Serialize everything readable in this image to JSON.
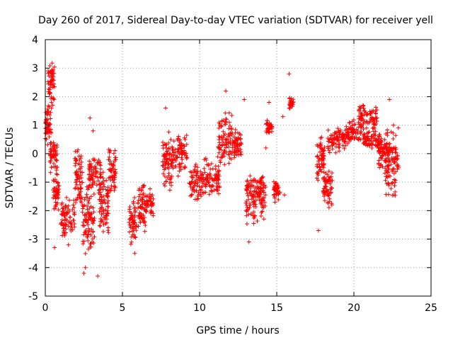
{
  "chart_data": {
    "type": "scatter",
    "title": "Day 260 of 2017, Sidereal Day-to-day VTEC variation (SDTVAR) for receiver yell",
    "xlabel": "GPS time / hours",
    "ylabel": "SDTVAR / TECUs",
    "xlim": [
      0,
      25
    ],
    "ylim": [
      -5,
      4
    ],
    "xticks": [
      "0",
      "5",
      "10",
      "15",
      "20",
      "25"
    ],
    "yticks": [
      "-5",
      "-4",
      "-3",
      "-2",
      "-1",
      "0",
      "1",
      "2",
      "3",
      "4"
    ],
    "grid": true,
    "marker": "+",
    "color": "#ff0000",
    "clusters": [
      {
        "x": [
          0.0,
          0.4
        ],
        "y": [
          0.2,
          1.8
        ]
      },
      {
        "x": [
          0.15,
          0.6
        ],
        "y": [
          1.5,
          3.3
        ]
      },
      {
        "x": [
          0.3,
          0.8
        ],
        "y": [
          -1.0,
          0.6
        ]
      },
      {
        "x": [
          0.5,
          0.9
        ],
        "y": [
          -2.0,
          -0.8
        ]
      },
      {
        "x": [
          1.0,
          1.9
        ],
        "y": [
          -3.0,
          -1.5
        ]
      },
      {
        "x": [
          1.9,
          2.4
        ],
        "y": [
          -2.0,
          0.3
        ]
      },
      {
        "x": [
          2.4,
          3.2
        ],
        "y": [
          -3.6,
          -1.0
        ]
      },
      {
        "x": [
          2.8,
          3.6
        ],
        "y": [
          -1.5,
          0.0
        ]
      },
      {
        "x": [
          3.5,
          4.1
        ],
        "y": [
          -3.0,
          -0.5
        ]
      },
      {
        "x": [
          4.1,
          4.6
        ],
        "y": [
          -1.5,
          0.2
        ]
      },
      {
        "x": [
          5.4,
          5.9
        ],
        "y": [
          -3.2,
          -1.5
        ]
      },
      {
        "x": [
          6.0,
          6.5
        ],
        "y": [
          -2.8,
          -1.0
        ]
      },
      {
        "x": [
          6.5,
          7.0
        ],
        "y": [
          -2.2,
          -1.2
        ]
      },
      {
        "x": [
          7.6,
          8.2
        ],
        "y": [
          -1.5,
          0.8
        ]
      },
      {
        "x": [
          8.2,
          9.2
        ],
        "y": [
          -0.8,
          0.8
        ]
      },
      {
        "x": [
          9.3,
          10.3
        ],
        "y": [
          -1.8,
          -0.2
        ]
      },
      {
        "x": [
          10.3,
          11.3
        ],
        "y": [
          -1.6,
          0.0
        ]
      },
      {
        "x": [
          11.2,
          12.2
        ],
        "y": [
          -0.5,
          1.5
        ]
      },
      {
        "x": [
          12.2,
          12.7
        ],
        "y": [
          -0.3,
          1.0
        ]
      },
      {
        "x": [
          13.0,
          13.6
        ],
        "y": [
          -2.6,
          -0.6
        ]
      },
      {
        "x": [
          13.6,
          14.3
        ],
        "y": [
          -2.4,
          -0.5
        ]
      },
      {
        "x": [
          14.3,
          14.7
        ],
        "y": [
          0.7,
          1.2
        ]
      },
      {
        "x": [
          14.8,
          15.2
        ],
        "y": [
          -1.8,
          -0.9
        ]
      },
      {
        "x": [
          15.8,
          16.1
        ],
        "y": [
          1.5,
          2.0
        ]
      },
      {
        "x": [
          17.6,
          18.1
        ],
        "y": [
          -1.2,
          0.8
        ]
      },
      {
        "x": [
          18.0,
          18.6
        ],
        "y": [
          -2.0,
          -0.5
        ]
      },
      {
        "x": [
          18.3,
          19.5
        ],
        "y": [
          0.0,
          1.0
        ]
      },
      {
        "x": [
          19.5,
          20.5
        ],
        "y": [
          0.3,
          1.2
        ]
      },
      {
        "x": [
          20.3,
          21.5
        ],
        "y": [
          0.7,
          1.8
        ]
      },
      {
        "x": [
          20.6,
          21.8
        ],
        "y": [
          0.1,
          0.8
        ]
      },
      {
        "x": [
          21.6,
          22.3
        ],
        "y": [
          -0.6,
          0.6
        ]
      },
      {
        "x": [
          22.0,
          22.9
        ],
        "y": [
          -1.7,
          1.3
        ]
      }
    ],
    "outliers": [
      {
        "x": 0.6,
        "y": -3.3
      },
      {
        "x": 1.5,
        "y": -3.2
      },
      {
        "x": 2.6,
        "y": -4.0
      },
      {
        "x": 2.5,
        "y": -4.2
      },
      {
        "x": 3.4,
        "y": -4.3
      },
      {
        "x": 2.9,
        "y": 1.25
      },
      {
        "x": 3.1,
        "y": 0.8
      },
      {
        "x": 5.8,
        "y": -3.5
      },
      {
        "x": 7.8,
        "y": 1.6
      },
      {
        "x": 13.2,
        "y": -3.1
      },
      {
        "x": 14.5,
        "y": 1.8
      },
      {
        "x": 14.3,
        "y": 0.2
      },
      {
        "x": 15.4,
        "y": 1.3
      },
      {
        "x": 15.5,
        "y": -1.45
      },
      {
        "x": 15.8,
        "y": 2.8
      },
      {
        "x": 17.7,
        "y": -2.7
      },
      {
        "x": 22.3,
        "y": 1.9
      },
      {
        "x": 22.6,
        "y": -0.3
      },
      {
        "x": 12.9,
        "y": 1.9
      },
      {
        "x": 11.7,
        "y": 2.2
      }
    ]
  }
}
